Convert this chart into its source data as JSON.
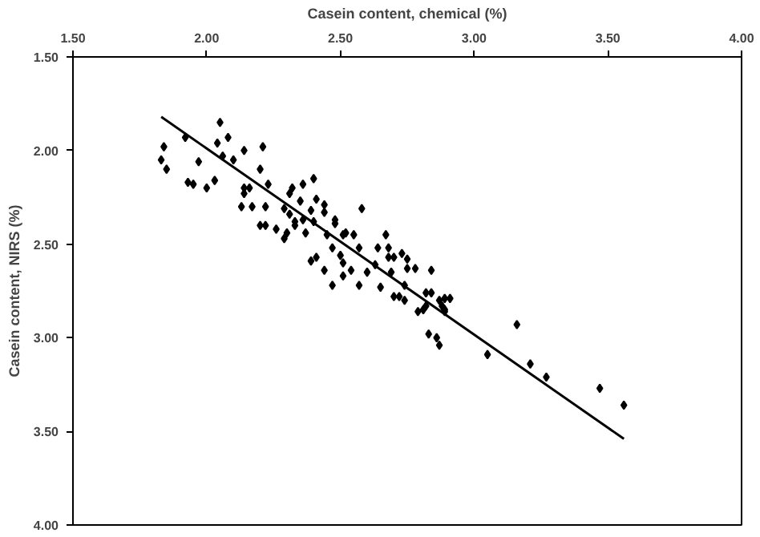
{
  "chart_data": {
    "type": "scatter",
    "xlabel": "Casein content, chemical (%)",
    "ylabel": "Casein content, NIRS (%)",
    "xlim": [
      1.5,
      4.0
    ],
    "ylim": [
      4.0,
      1.5
    ],
    "xticks": [
      {
        "value": 1.5,
        "label": "1.50"
      },
      {
        "value": 2.0,
        "label": "2.00"
      },
      {
        "value": 2.5,
        "label": "2.50"
      },
      {
        "value": 3.0,
        "label": "3.00"
      },
      {
        "value": 3.5,
        "label": "3.50"
      },
      {
        "value": 4.0,
        "label": "4.00"
      }
    ],
    "yticks": [
      {
        "value": 1.5,
        "label": "1.50"
      },
      {
        "value": 2.0,
        "label": "2.00"
      },
      {
        "value": 2.5,
        "label": "2.50"
      },
      {
        "value": 3.0,
        "label": "3.00"
      },
      {
        "value": 3.5,
        "label": "3.50"
      },
      {
        "value": 4.0,
        "label": "4.00"
      }
    ],
    "grid": false,
    "series": [
      {
        "color": "#000000",
        "marker": "diamond",
        "x": [
          1.83,
          1.84,
          1.85,
          1.92,
          1.93,
          1.95,
          1.97,
          2.0,
          2.03,
          2.04,
          2.05,
          2.06,
          2.08,
          2.1,
          2.13,
          2.14,
          2.14,
          2.14,
          2.16,
          2.17,
          2.2,
          2.21,
          2.2,
          2.22,
          2.22,
          2.23,
          2.26,
          2.29,
          2.29,
          2.3,
          2.31,
          2.31,
          2.32,
          2.33,
          2.33,
          2.35,
          2.36,
          2.36,
          2.37,
          2.39,
          2.4,
          2.4,
          2.39,
          2.41,
          2.41,
          2.44,
          2.44,
          2.44,
          2.45,
          2.47,
          2.47,
          2.48,
          2.48,
          2.5,
          2.51,
          2.51,
          2.51,
          2.52,
          2.54,
          2.55,
          2.57,
          2.57,
          2.58,
          2.6,
          2.63,
          2.64,
          2.65,
          2.67,
          2.68,
          2.68,
          2.69,
          2.7,
          2.7,
          2.72,
          2.73,
          2.74,
          2.74,
          2.75,
          2.75,
          2.78,
          2.79,
          2.82,
          2.82,
          2.84,
          2.84,
          2.87,
          2.88,
          2.89,
          2.91,
          2.89,
          2.81,
          2.89,
          2.83,
          2.86,
          2.87,
          3.05,
          3.16,
          3.21,
          3.27,
          3.47,
          3.56
        ],
        "values": [
          2.05,
          1.98,
          2.1,
          1.93,
          2.17,
          2.18,
          2.06,
          2.2,
          2.16,
          1.96,
          1.85,
          2.03,
          1.93,
          2.05,
          2.3,
          2.0,
          2.2,
          2.23,
          2.2,
          2.3,
          2.1,
          1.98,
          2.4,
          2.3,
          2.4,
          2.18,
          2.42,
          2.31,
          2.47,
          2.44,
          2.34,
          2.23,
          2.2,
          2.38,
          2.4,
          2.27,
          2.18,
          2.37,
          2.44,
          2.32,
          2.15,
          2.38,
          2.59,
          2.26,
          2.57,
          2.29,
          2.33,
          2.64,
          2.45,
          2.52,
          2.72,
          2.39,
          2.37,
          2.56,
          2.45,
          2.6,
          2.67,
          2.44,
          2.64,
          2.45,
          2.52,
          2.72,
          2.31,
          2.65,
          2.61,
          2.52,
          2.73,
          2.45,
          2.52,
          2.57,
          2.65,
          2.57,
          2.78,
          2.78,
          2.55,
          2.72,
          2.8,
          2.58,
          2.63,
          2.63,
          2.86,
          2.76,
          2.83,
          2.76,
          2.64,
          2.8,
          2.83,
          2.79,
          2.79,
          2.85,
          2.85,
          2.86,
          2.98,
          3.0,
          3.04,
          3.09,
          2.93,
          3.14,
          3.21,
          3.27,
          3.36
        ]
      },
      {
        "type": "line",
        "color": "#000000",
        "x": [
          1.83,
          3.56
        ],
        "values": [
          1.82,
          3.54
        ]
      }
    ]
  }
}
